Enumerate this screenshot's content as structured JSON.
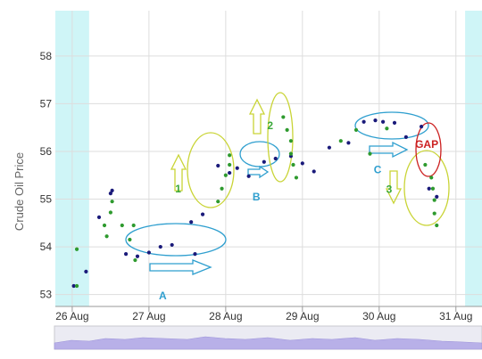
{
  "chart_data": {
    "type": "scatter",
    "ylabel": "Crude Oil Price",
    "ylim": [
      52.75,
      58.95
    ],
    "xlim": [
      -0.22,
      5.34
    ],
    "yticks": [
      53,
      54,
      55,
      56,
      57,
      58
    ],
    "xticks": [
      {
        "x": 0,
        "label": "26 Aug"
      },
      {
        "x": 1,
        "label": "27 Aug"
      },
      {
        "x": 2,
        "label": "28 Aug"
      },
      {
        "x": 3,
        "label": "29 Aug"
      },
      {
        "x": 4,
        "label": "30 Aug"
      },
      {
        "x": 5,
        "label": "31 Aug"
      }
    ],
    "shaded_ranges": [
      [
        -0.22,
        0.22
      ],
      [
        5.12,
        5.34
      ]
    ],
    "colors": {
      "navy_points": "#1a1a7a",
      "green_points": "#2e9a2e",
      "shade": "#cff5f7",
      "grid": "#dddddd",
      "yellow_annotation": "#c9d436",
      "blue_annotation": "#2f9fcf",
      "red_annotation": "#cc2020",
      "green_text": "#3aa83a",
      "blue_text": "#2f9fcf"
    },
    "series": [
      {
        "color": "navy",
        "points": [
          [
            0.02,
            53.18
          ],
          [
            0.18,
            53.48
          ],
          [
            0.35,
            54.62
          ],
          [
            0.5,
            55.12
          ],
          [
            0.52,
            55.18
          ],
          [
            0.7,
            53.85
          ],
          [
            0.85,
            53.8
          ],
          [
            1.0,
            53.88
          ],
          [
            1.15,
            54.0
          ],
          [
            1.3,
            54.04
          ],
          [
            1.55,
            54.52
          ],
          [
            1.7,
            54.68
          ],
          [
            1.9,
            55.7
          ],
          [
            2.15,
            55.65
          ],
          [
            2.05,
            55.55
          ],
          [
            2.3,
            55.48
          ],
          [
            2.5,
            55.78
          ],
          [
            2.65,
            55.85
          ],
          [
            2.85,
            55.9
          ],
          [
            3.0,
            55.75
          ],
          [
            3.15,
            55.58
          ],
          [
            3.35,
            56.08
          ],
          [
            3.6,
            56.18
          ],
          [
            3.8,
            56.62
          ],
          [
            3.95,
            56.65
          ],
          [
            4.05,
            56.62
          ],
          [
            4.2,
            56.6
          ],
          [
            4.35,
            56.3
          ],
          [
            4.55,
            56.52
          ],
          [
            4.65,
            55.22
          ],
          [
            4.75,
            55.05
          ],
          [
            1.6,
            53.85
          ]
        ]
      },
      {
        "color": "green",
        "points": [
          [
            0.06,
            53.18
          ],
          [
            0.06,
            53.95
          ],
          [
            0.42,
            54.45
          ],
          [
            0.45,
            54.22
          ],
          [
            0.5,
            54.72
          ],
          [
            0.52,
            54.95
          ],
          [
            0.65,
            54.45
          ],
          [
            0.75,
            54.15
          ],
          [
            0.8,
            54.45
          ],
          [
            0.82,
            53.72
          ],
          [
            1.9,
            54.95
          ],
          [
            1.95,
            55.22
          ],
          [
            2.0,
            55.5
          ],
          [
            2.05,
            55.92
          ],
          [
            2.05,
            55.72
          ],
          [
            2.75,
            56.72
          ],
          [
            2.8,
            56.45
          ],
          [
            2.85,
            56.22
          ],
          [
            2.85,
            55.95
          ],
          [
            2.88,
            55.72
          ],
          [
            2.92,
            55.45
          ],
          [
            3.5,
            56.22
          ],
          [
            3.7,
            56.45
          ],
          [
            3.88,
            55.95
          ],
          [
            4.1,
            56.48
          ],
          [
            4.6,
            55.72
          ],
          [
            4.68,
            55.45
          ],
          [
            4.7,
            55.22
          ],
          [
            4.72,
            54.98
          ],
          [
            4.72,
            54.7
          ],
          [
            4.75,
            54.45
          ]
        ]
      }
    ],
    "annotations": [
      {
        "label": "A",
        "color": "blue",
        "x": 1.18,
        "y": 52.9
      },
      {
        "label": "B",
        "color": "blue",
        "x": 2.4,
        "y": 54.97
      },
      {
        "label": "C",
        "color": "blue",
        "x": 3.98,
        "y": 55.54
      },
      {
        "label": "1",
        "color": "green",
        "x": 1.38,
        "y": 55.14
      },
      {
        "label": "2",
        "color": "green",
        "x": 2.58,
        "y": 56.47
      },
      {
        "label": "3",
        "color": "green",
        "x": 4.13,
        "y": 55.13
      },
      {
        "label": "GAP",
        "color": "red",
        "x": 4.62,
        "y": 56.07
      }
    ]
  }
}
